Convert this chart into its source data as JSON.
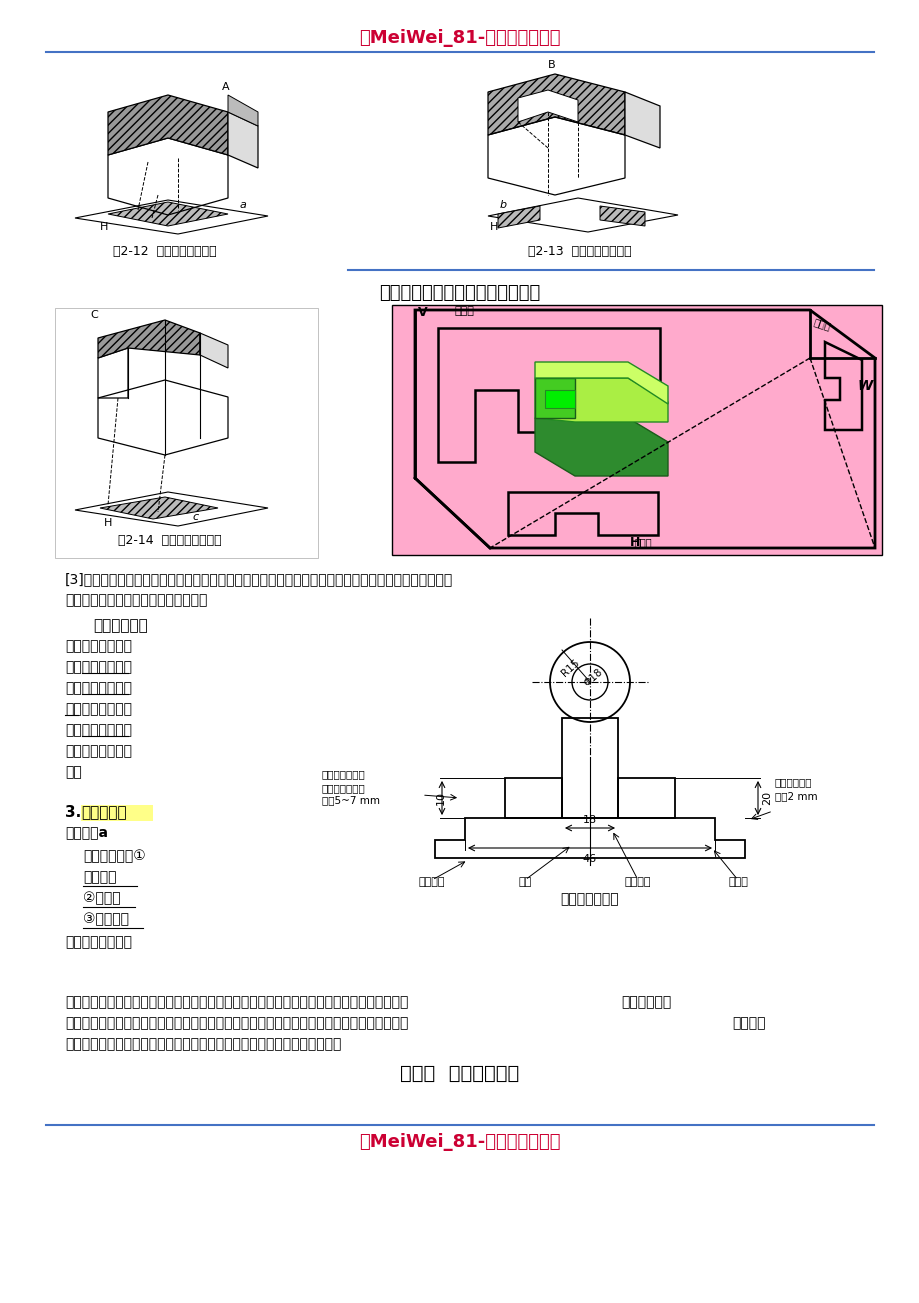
{
  "bg_color": "#ffffff",
  "title_text": "「MeiWei_81-优质适用文档」",
  "title_color": "#cc0033",
  "title_fontsize": 13,
  "section_title_1": "三视图的形成及其投影规则（２）",
  "section_title_color": "#000000",
  "footer_text": "「MeiWei_81-优质适用文档」",
  "footer_color": "#cc0033",
  "line_color": "#4472c4",
  "fig212_caption": "图2-12  平面投影的真实性",
  "fig213_caption": "图2-13  平面投影的积聚性",
  "fig214_caption": "图2-14  平面投影的收缩性",
  "chapter_title": "第三章  怎样进行设计"
}
